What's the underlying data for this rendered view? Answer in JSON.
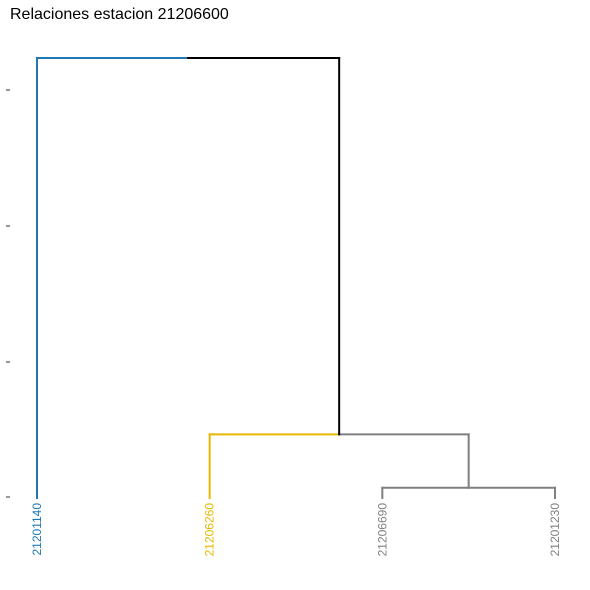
{
  "chart_data": {
    "type": "dendrogram",
    "title": "Relaciones estacion 21206600",
    "xlabel": "",
    "ylabel": "",
    "y_tick_count": 4,
    "leaves": [
      {
        "label": "21201140",
        "color": "#1F78B4"
      },
      {
        "label": "21206260",
        "color": "#E7B800"
      },
      {
        "label": "21206690",
        "color": "#808080"
      },
      {
        "label": "21201230",
        "color": "#808080"
      }
    ],
    "merges": [
      {
        "left": "leaf:2",
        "right": "leaf:3",
        "height": 0.06,
        "color": "#808080"
      },
      {
        "left": "leaf:1",
        "right": "node:0",
        "height": 0.45,
        "color": "#808080",
        "left_color": "#E7B800"
      },
      {
        "left": "leaf:0",
        "right": "node:1",
        "height": 3.2,
        "color": "#000000",
        "left_color": "#1F78B4"
      }
    ],
    "ylim": [
      0,
      3.2
    ],
    "grid": false,
    "legend": "none",
    "colors": {
      "root": "#000000",
      "cluster1": "#1F78B4",
      "cluster2": "#E7B800",
      "cluster3": "#808080"
    }
  }
}
